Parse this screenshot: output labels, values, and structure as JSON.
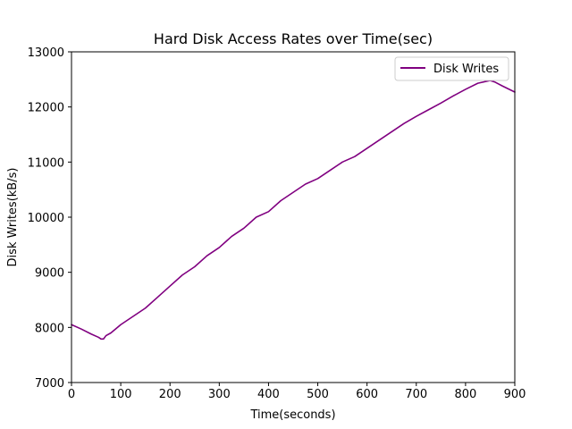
{
  "chart_data": {
    "type": "line",
    "title": "Hard Disk Access Rates over Time(sec)",
    "xlabel": "Time(seconds)",
    "ylabel": "Disk Writes(kB/s)",
    "xlim": [
      0,
      900
    ],
    "ylim": [
      7000,
      13000
    ],
    "xticks": [
      0,
      100,
      200,
      300,
      400,
      500,
      600,
      700,
      800,
      900
    ],
    "yticks": [
      7000,
      8000,
      9000,
      10000,
      11000,
      12000,
      13000
    ],
    "grid": false,
    "legend_position": "top-right",
    "series": [
      {
        "name": "Disk Writes",
        "color": "#800080",
        "x": [
          0,
          20,
          40,
          55,
          60,
          65,
          70,
          80,
          100,
          125,
          150,
          175,
          200,
          225,
          250,
          275,
          300,
          325,
          350,
          375,
          400,
          425,
          450,
          475,
          500,
          525,
          550,
          575,
          600,
          625,
          650,
          675,
          700,
          725,
          750,
          775,
          800,
          825,
          850,
          860,
          875,
          900
        ],
        "values": [
          8050,
          7970,
          7880,
          7820,
          7790,
          7790,
          7850,
          7900,
          8050,
          8200,
          8350,
          8550,
          8750,
          8950,
          9100,
          9300,
          9450,
          9650,
          9800,
          10000,
          10100,
          10300,
          10450,
          10600,
          10700,
          10850,
          11000,
          11100,
          11250,
          11400,
          11550,
          11700,
          11830,
          11950,
          12070,
          12200,
          12320,
          12430,
          12480,
          12450,
          12380,
          12270
        ]
      }
    ]
  }
}
